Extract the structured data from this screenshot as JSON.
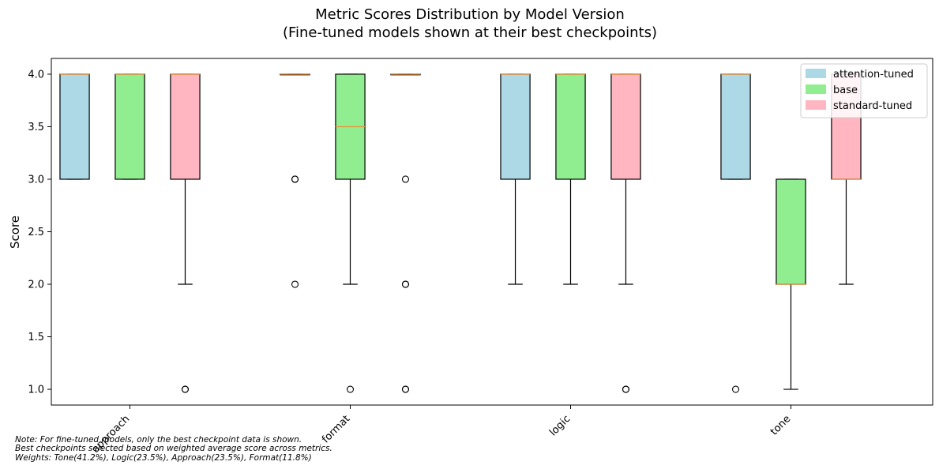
{
  "chart_data": {
    "type": "boxplot",
    "title": "Metric Scores Distribution by Model Version",
    "subtitle": "(Fine-tuned models shown at their best checkpoints)",
    "xlabel": "",
    "ylabel": "Score",
    "ylim": [
      0.85,
      4.15
    ],
    "yticks": [
      "1.0",
      "1.5",
      "2.0",
      "2.5",
      "3.0",
      "3.5",
      "4.0"
    ],
    "categories": [
      "approach",
      "format",
      "logic",
      "tone"
    ],
    "grid": false,
    "legend_position": "top-right",
    "series": [
      {
        "name": "attention-tuned",
        "color": "#add8e6",
        "boxes": [
          {
            "whislo": 3.0,
            "q1": 3.0,
            "med": 4.0,
            "q3": 4.0,
            "whishi": 4.0,
            "fliers": []
          },
          {
            "whislo": 4.0,
            "q1": 4.0,
            "med": 4.0,
            "q3": 4.0,
            "whishi": 4.0,
            "fliers": [
              3.0,
              3.0,
              2.0
            ]
          },
          {
            "whislo": 2.0,
            "q1": 3.0,
            "med": 4.0,
            "q3": 4.0,
            "whishi": 4.0,
            "fliers": []
          },
          {
            "whislo": 3.0,
            "q1": 3.0,
            "med": 4.0,
            "q3": 4.0,
            "whishi": 4.0,
            "fliers": [
              1.0
            ]
          }
        ]
      },
      {
        "name": "base",
        "color": "#90ee90",
        "boxes": [
          {
            "whislo": 3.0,
            "q1": 3.0,
            "med": 4.0,
            "q3": 4.0,
            "whishi": 4.0,
            "fliers": []
          },
          {
            "whislo": 2.0,
            "q1": 3.0,
            "med": 3.5,
            "q3": 4.0,
            "whishi": 4.0,
            "fliers": [
              1.0
            ]
          },
          {
            "whislo": 2.0,
            "q1": 3.0,
            "med": 4.0,
            "q3": 4.0,
            "whishi": 4.0,
            "fliers": []
          },
          {
            "whislo": 1.0,
            "q1": 2.0,
            "med": 2.0,
            "q3": 3.0,
            "whishi": 3.0,
            "fliers": []
          }
        ]
      },
      {
        "name": "standard-tuned",
        "color": "#ffb6c1",
        "boxes": [
          {
            "whislo": 2.0,
            "q1": 3.0,
            "med": 4.0,
            "q3": 4.0,
            "whishi": 4.0,
            "fliers": [
              1.0,
              1.0
            ]
          },
          {
            "whislo": 4.0,
            "q1": 4.0,
            "med": 4.0,
            "q3": 4.0,
            "whishi": 4.0,
            "fliers": [
              3.0,
              2.0,
              2.0,
              1.0,
              1.0
            ]
          },
          {
            "whislo": 2.0,
            "q1": 3.0,
            "med": 4.0,
            "q3": 4.0,
            "whishi": 4.0,
            "fliers": [
              1.0,
              1.0
            ]
          },
          {
            "whislo": 2.0,
            "q1": 3.0,
            "med": 3.0,
            "q3": 4.0,
            "whishi": 4.0,
            "fliers": []
          }
        ]
      }
    ],
    "median_color": "#e8913a",
    "note": [
      "Note: For fine-tuned models, only the best checkpoint data is shown.",
      "Best checkpoints selected based on weighted average score across metrics.",
      "Weights: Tone(41.2%), Logic(23.5%), Approach(23.5%), Format(11.8%)"
    ]
  }
}
